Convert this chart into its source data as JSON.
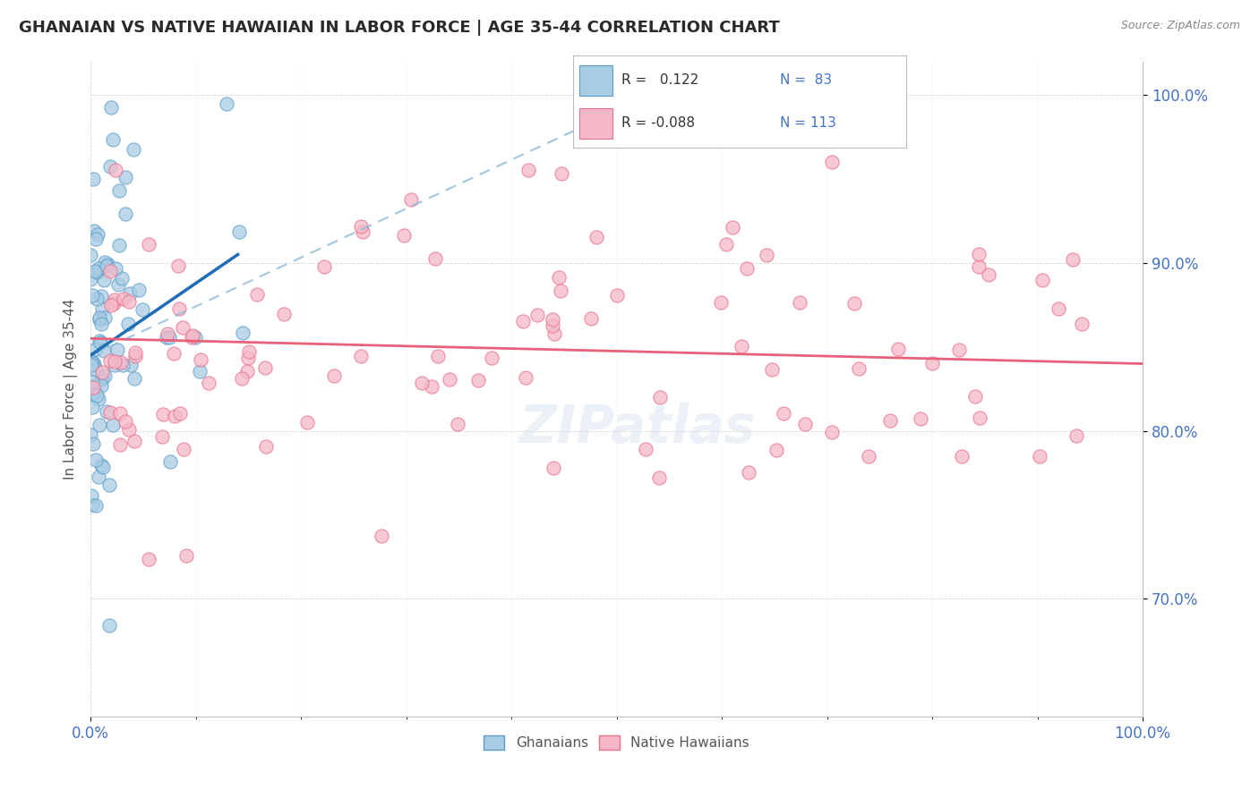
{
  "title": "GHANAIAN VS NATIVE HAWAIIAN IN LABOR FORCE | AGE 35-44 CORRELATION CHART",
  "source": "Source: ZipAtlas.com",
  "ylabel": "In Labor Force | Age 35-44",
  "ghanaian_color": "#a8cce4",
  "ghanaian_edge_color": "#5b9dc9",
  "hawaiian_color": "#f5b8c8",
  "hawaiian_edge_color": "#e8708a",
  "ghanaian_line_color": "#1f6eb5",
  "hawaiian_line_color": "#e8607a",
  "dashed_line_color": "#8ab8d8",
  "background_color": "#ffffff",
  "grid_color": "#c8c8c8",
  "tick_color": "#4472c4",
  "ylabel_color": "#555555",
  "title_color": "#2a2a2a",
  "source_color": "#888888",
  "legend_r1_color": "#333333",
  "legend_n1_color": "#4472c4",
  "watermark_color": "#c8d8e8",
  "xlim": [
    0,
    100
  ],
  "ylim": [
    63,
    102
  ],
  "yticks": [
    70,
    80,
    90,
    100
  ],
  "ytick_labels": [
    "70.0%",
    "80.0%",
    "90.0%",
    "100.0%"
  ],
  "xtick_labels_left": "0.0%",
  "xtick_labels_right": "100.0%",
  "legend_r1": "R =  0.122",
  "legend_n1": "N = 83",
  "legend_r2": "R = -0.088",
  "legend_n2": "N = 113",
  "legend_label1": "Ghanaians",
  "legend_label2": "Native Hawaiians",
  "ghana_trend_x0": 0,
  "ghana_trend_x1": 14,
  "ghana_trend_y0": 84.5,
  "ghana_trend_y1": 90.5,
  "dash_x0": 0,
  "dash_x1": 55,
  "dash_y0": 84.5,
  "dash_y1": 100.5,
  "hawaii_trend_x0": 0,
  "hawaii_trend_x1": 100,
  "hawaii_trend_y0": 85.5,
  "hawaii_trend_y1": 84.0
}
